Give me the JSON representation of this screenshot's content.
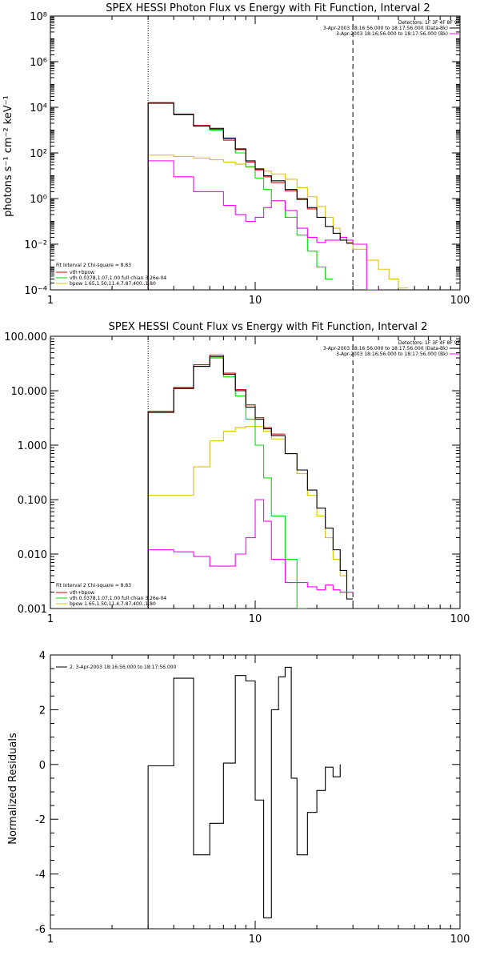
{
  "colors": {
    "background": "#ffffff",
    "axes": "#000000",
    "data": "#000000",
    "bk": "#e00000",
    "total": "#ff00ff",
    "vth": "#00dd00",
    "bpow": "#ddc000"
  },
  "chart_data": [
    {
      "type": "line",
      "title": "SPEX HESSI Photon Flux vs Energy with Fit Function, Interval 2",
      "xlabel": "",
      "ylabel": "photons s⁻¹ cm⁻² keV⁻¹",
      "xscale": "log",
      "yscale": "log",
      "xlim": [
        1,
        100
      ],
      "ylim": [
        0.0001,
        100000000
      ],
      "x_ticks": [
        "1",
        "10",
        "100"
      ],
      "y_ticks": [
        "10⁻⁴",
        "10⁻²",
        "10⁰",
        "10²",
        "10⁴",
        "10⁶",
        "10⁸"
      ],
      "info_lines": [
        "Detectors: 1F 3F 4F 8F 9F",
        "3-Apr-2003 18:16:56.000 to 18:17:56.000 (Data-Bk)",
        "3-Apr-2003 18:16:56.000 to 18:17:56.000 (Bk)"
      ],
      "fit_legend": {
        "header": "Fit Interval 2   Chi-square = 8.83",
        "entries": [
          "vth+bpow",
          "vth 0.0378,1.07,1.00  full chian 3.26e-04",
          "bpow 1.65,1.50,11.4,7.87,400.,1.80"
        ]
      },
      "threshold_lines": {
        "dotted_x": 3,
        "dashed_x": 30
      },
      "edges": [
        3,
        4,
        5,
        6,
        7,
        8,
        9,
        10,
        11,
        12,
        14,
        16,
        18,
        20,
        22,
        24,
        26,
        28,
        30,
        35,
        40,
        45,
        50,
        56
      ],
      "series": [
        {
          "label": "Data-Bk",
          "color_key": "data",
          "values": [
            15000,
            5000,
            1500,
            1200,
            450,
            150,
            45,
            20,
            10,
            6,
            2.5,
            1.0,
            0.4,
            0.15,
            0.06,
            0.03,
            0.015,
            0.011
          ]
        },
        {
          "label": "Bk",
          "color_key": "bk",
          "values": [
            16000,
            4700,
            1600,
            1100,
            400,
            140,
            40,
            18,
            9,
            5,
            2.2,
            0.9,
            0.35
          ]
        },
        {
          "label": "vth+bpow",
          "color_key": "total",
          "values": [
            45,
            9,
            2,
            2,
            0.5,
            0.2,
            0.1,
            0.15,
            0.4,
            0.8,
            0.3,
            0.05,
            0.02,
            0.012,
            0.015,
            0.015,
            0.02,
            0.015,
            0.01,
            0.0001
          ]
        },
        {
          "label": "vth",
          "color_key": "vth",
          "values": [
            15000,
            5000,
            1500,
            1000,
            350,
            100,
            25,
            8,
            2.5,
            0.8,
            0.15,
            0.025,
            0.005,
            0.001,
            0.0003
          ]
        },
        {
          "label": "bpow",
          "color_key": "bpow",
          "values": [
            80,
            70,
            60,
            50,
            40,
            32,
            24,
            20,
            16,
            12,
            7,
            3,
            1.2,
            0.45,
            0.15,
            0.05,
            0.02,
            0.012,
            0.006,
            0.002,
            0.0008,
            0.0003,
            0.00012
          ]
        }
      ]
    },
    {
      "type": "line",
      "title": "SPEX HESSI Count Flux vs Energy with Fit Function, Interval 2",
      "xlabel": "",
      "ylabel": "",
      "xscale": "log",
      "yscale": "log",
      "xlim": [
        1,
        100
      ],
      "ylim": [
        0.001,
        100
      ],
      "x_ticks": [
        "1",
        "10",
        "100"
      ],
      "y_ticks": [
        "0.001",
        "0.010",
        "0.100",
        "1.000",
        "10.000",
        "100.000"
      ],
      "info_lines": [
        "Detectors: 1F 3F 4F 8F 9F",
        "3-Apr-2003 18:16:56.000 to 18:17:56.000 (Data-Bk)",
        "3-Apr-2003 18:16:56.000 to 18:17:56.000 (Bk)"
      ],
      "fit_legend": {
        "header": "Fit Interval 2   Chi-square = 8.83",
        "entries": [
          "vth+bpow",
          "vth 0.0378,1.07,1.00  full chian 3.26e-04",
          "bpow 1.65,1.50,11.4,7.87,400.,1.80"
        ]
      },
      "threshold_lines": {
        "dotted_x": 3,
        "dashed_x": 30
      },
      "edges": [
        3,
        4,
        5,
        6,
        7,
        8,
        9,
        10,
        11,
        12,
        14,
        16,
        18,
        20,
        22,
        24,
        26,
        28,
        30
      ],
      "series": [
        {
          "label": "Data-Bk",
          "color_key": "data",
          "values": [
            4,
            11,
            28,
            42,
            20,
            10,
            5,
            3,
            2,
            1.5,
            0.7,
            0.35,
            0.15,
            0.07,
            0.03,
            0.012,
            0.005,
            0.0015
          ]
        },
        {
          "label": "Bk",
          "color_key": "bk",
          "values": [
            4.2,
            11.5,
            30,
            45,
            21,
            10.5,
            5.5,
            3.2,
            2.1,
            1.6
          ]
        },
        {
          "label": "vth+bpow",
          "color_key": "total",
          "values": [
            0.012,
            0.011,
            0.009,
            0.006,
            0.006,
            0.01,
            0.02,
            0.1,
            0.04,
            0.008,
            0.003,
            0.003,
            0.0025,
            0.0022,
            0.0027,
            0.0022,
            0.002,
            0.002
          ]
        },
        {
          "label": "vth",
          "color_key": "vth",
          "values": [
            4,
            11,
            28,
            40,
            18,
            8,
            3,
            1,
            0.25,
            0.05,
            0.008,
            0.001
          ]
        },
        {
          "label": "bpow",
          "color_key": "bpow",
          "values": [
            0.12,
            0.12,
            0.4,
            1.2,
            1.8,
            2.1,
            2.2,
            2.2,
            1.8,
            1.3,
            0.7,
            0.3,
            0.12,
            0.05,
            0.02,
            0.008,
            0.004,
            0.002
          ]
        }
      ]
    },
    {
      "type": "line",
      "title": "",
      "xlabel": "",
      "ylabel": "Normalized Residuals",
      "xscale": "log",
      "yscale": "linear",
      "xlim": [
        1,
        100
      ],
      "ylim": [
        -6,
        4
      ],
      "x_ticks": [
        "1",
        "10",
        "100"
      ],
      "y_ticks": [
        "-6",
        "-4",
        "-2",
        "0",
        "2",
        "4"
      ],
      "legend": [
        "2.  3-Apr-2003 18:16:56.000 to 18:17:56.000"
      ],
      "edges": [
        3,
        4,
        5,
        6,
        7,
        8,
        9,
        10,
        11,
        12,
        13,
        14,
        15,
        16,
        18,
        20,
        22,
        24,
        26,
        28,
        30
      ],
      "series": [
        {
          "label": "residuals",
          "color_key": "data",
          "values": [
            -0.05,
            3.15,
            -3.3,
            -2.15,
            0.05,
            3.25,
            3.05,
            -1.3,
            -5.6,
            2.0,
            3.2,
            3.55,
            -0.5,
            -3.3,
            -1.75,
            -0.95,
            -0.1,
            -0.45
          ]
        }
      ]
    }
  ]
}
